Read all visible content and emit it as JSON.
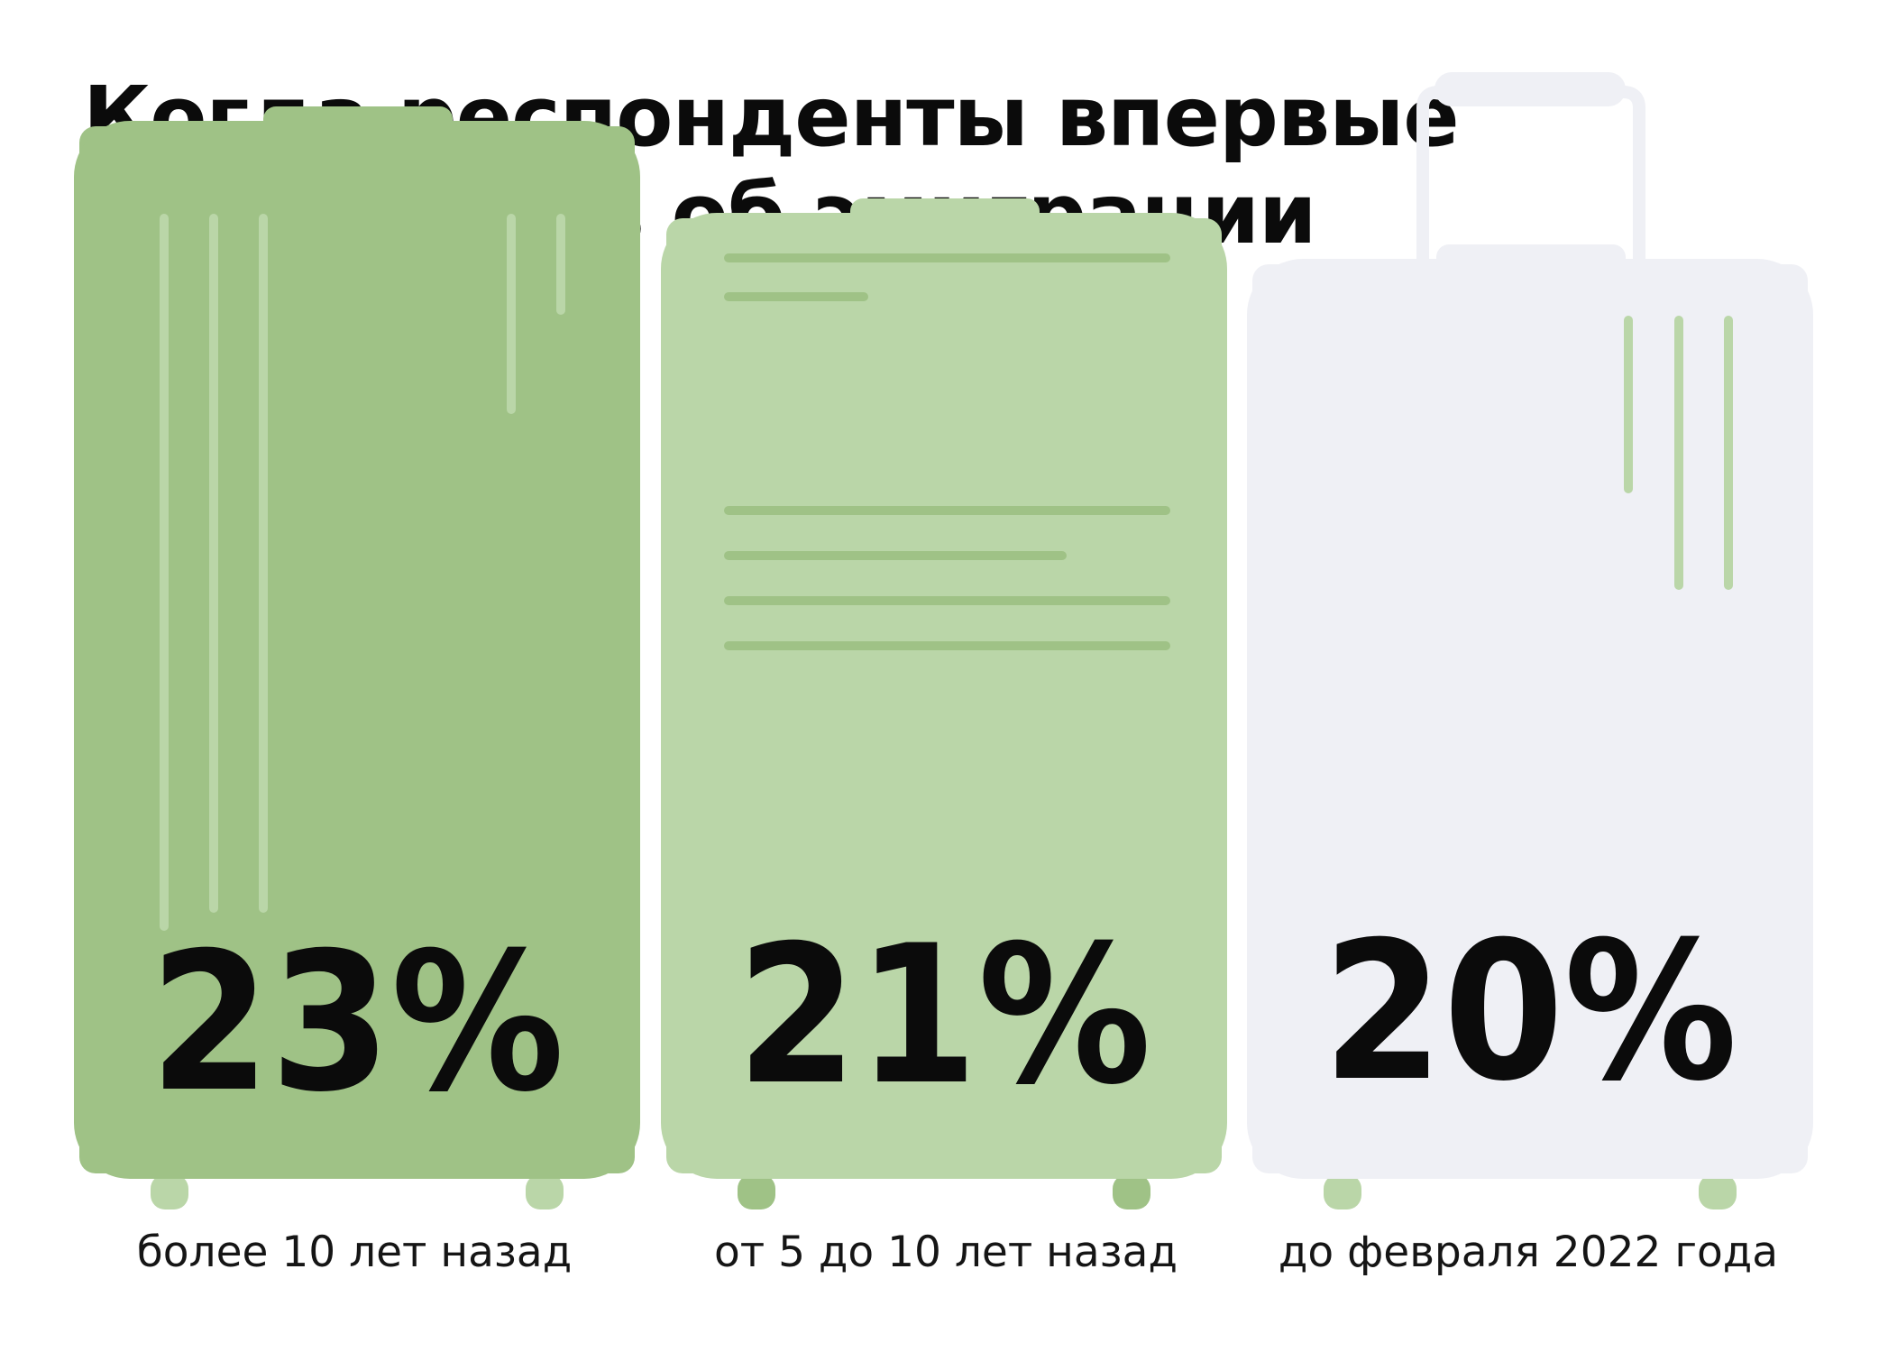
{
  "title": {
    "line1": "Когда респонденты впервые",
    "line2": "задумались об эмиграции"
  },
  "chart_data": {
    "type": "bar",
    "style": "suitcase pictogram bars",
    "title": "Когда респонденты впервые задумались об эмиграции",
    "xlabel": "",
    "ylabel": "",
    "unit": "%",
    "grid": false,
    "legend": "none",
    "categories": [
      "более 10 лет назад",
      "от 5 до 10 лет назад",
      "до февраля 2022 года"
    ],
    "values": [
      23,
      21,
      20
    ],
    "value_labels": [
      "23%",
      "21%",
      "20%"
    ],
    "colors": [
      "#9fc286",
      "#bad6a8",
      "#eff0f5"
    ],
    "stripe_colors": [
      "#bad6a8",
      "#9fc286",
      "#bad6a8"
    ],
    "handle_color": "#eff0f5"
  }
}
